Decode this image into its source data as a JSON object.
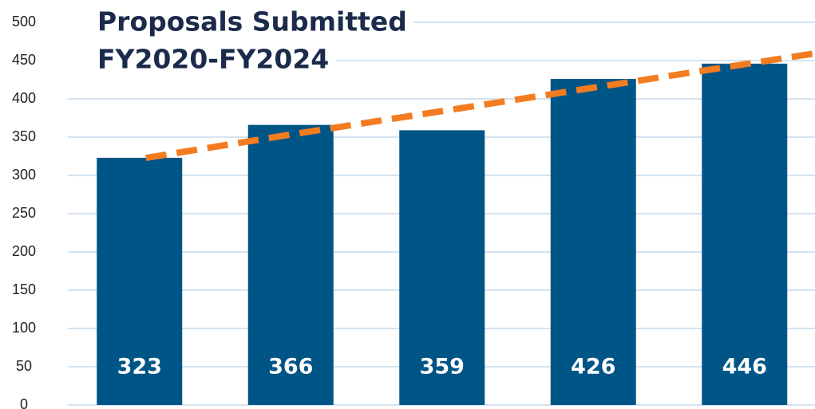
{
  "chart_data": {
    "type": "bar",
    "title": [
      "Proposals Submitted",
      "FY2020-FY2024"
    ],
    "categories": [
      null,
      null,
      null,
      null,
      null
    ],
    "values": [
      323,
      366,
      359,
      426,
      446
    ],
    "color": "#005587",
    "trendline": {
      "color": "#f47c20",
      "values": [
        322.8,
        353.4,
        384,
        414.6,
        445.2
      ]
    },
    "ylim": [
      0,
      500
    ],
    "yticks": [
      0,
      50,
      100,
      150,
      200,
      250,
      300,
      350,
      400,
      450,
      500
    ],
    "grid": true
  }
}
